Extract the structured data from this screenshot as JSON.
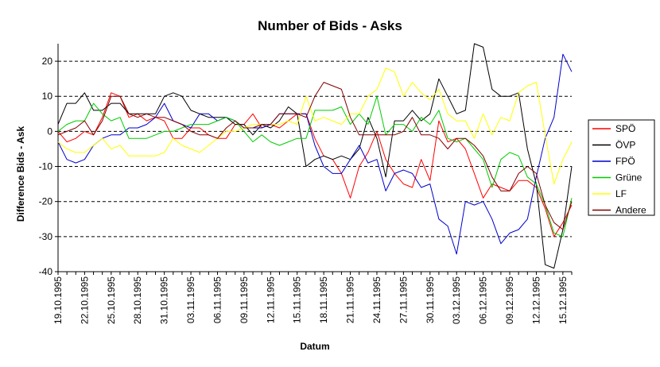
{
  "chart_data": {
    "type": "line",
    "title": "Number of Bids - Asks",
    "xlabel": "Datum",
    "ylabel": "Difference Bids - Ask",
    "ylim": [
      -40,
      25
    ],
    "yticks": [
      -40,
      -30,
      -20,
      -10,
      0,
      10,
      20
    ],
    "grid": "horizontal dashed",
    "legend_position": "right",
    "x": [
      "19.10.1995",
      "20.10.1995",
      "21.10.1995",
      "22.10.1995",
      "23.10.1995",
      "24.10.1995",
      "25.10.1995",
      "26.10.1995",
      "27.10.1995",
      "28.10.1995",
      "29.10.1995",
      "30.10.1995",
      "31.10.1995",
      "01.11.1995",
      "02.11.1995",
      "03.11.1995",
      "04.11.1995",
      "05.11.1995",
      "06.11.1995",
      "07.11.1995",
      "08.11.1995",
      "09.11.1995",
      "10.11.1995",
      "11.11.1995",
      "12.11.1995",
      "13.11.1995",
      "14.11.1995",
      "15.11.1995",
      "16.11.1995",
      "17.11.1995",
      "18.11.1995",
      "19.11.1995",
      "20.11.1995",
      "21.11.1995",
      "22.11.1995",
      "23.11.1995",
      "24.11.1995",
      "25.11.1995",
      "26.11.1995",
      "27.11.1995",
      "28.11.1995",
      "29.11.1995",
      "30.11.1995",
      "01.12.1995",
      "02.12.1995",
      "03.12.1995",
      "04.12.1995",
      "05.12.1995",
      "06.12.1995",
      "07.12.1995",
      "08.12.1995",
      "09.12.1995",
      "10.12.1995",
      "11.12.1995",
      "12.12.1995",
      "13.12.1995",
      "14.12.1995",
      "15.12.1995",
      "16.12.1995"
    ],
    "xtick_labels": [
      "19.10.1995",
      "22.10.1995",
      "25.10.1995",
      "28.10.1995",
      "31.10.1995",
      "03.11.1995",
      "06.11.1995",
      "09.11.1995",
      "12.11.1995",
      "15.11.1995",
      "18.11.1995",
      "21.11.1995",
      "24.11.1995",
      "27.11.1995",
      "30.11.1995",
      "03.12.1995",
      "06.12.1995",
      "09.12.1995",
      "12.12.1995",
      "15.12.1995"
    ],
    "series": [
      {
        "name": "SPÖ",
        "color": "#ff0000",
        "values": [
          0,
          -3,
          -2,
          0,
          -1,
          4,
          11,
          10,
          4,
          5,
          3,
          4,
          3,
          -2,
          -2,
          1,
          1,
          -1,
          -2,
          -2,
          2,
          2,
          5,
          1,
          2,
          1,
          3,
          5,
          5,
          -2,
          -7,
          -8,
          -12,
          -19,
          -10,
          -6,
          0,
          -8,
          -12,
          -15,
          -16,
          -8,
          -14,
          3,
          -3,
          -2,
          -5,
          -12,
          -19,
          -15,
          -16,
          -17,
          -14,
          -14,
          -16,
          -22,
          -30,
          -26,
          -21
        ]
      },
      {
        "name": "ÖVP",
        "color": "#000000",
        "values": [
          2,
          8,
          8,
          11,
          6,
          6,
          8,
          8,
          5,
          5,
          5,
          5,
          10,
          11,
          10,
          6,
          5,
          4,
          4,
          4,
          2,
          2,
          -1,
          2,
          1,
          3,
          7,
          5,
          -10,
          -8,
          -7,
          -8,
          -7,
          -8,
          -5,
          4,
          -2,
          -13,
          3,
          3,
          6,
          3,
          5,
          15,
          10,
          5,
          6,
          25,
          24,
          12,
          10,
          10,
          11,
          -5,
          -15,
          -38,
          -39,
          -28,
          -10
        ]
      },
      {
        "name": "FPÖ",
        "color": "#0000cc",
        "values": [
          -3,
          -8,
          -9,
          -8,
          -4,
          -2,
          -1,
          -1,
          1,
          1,
          2,
          4,
          8,
          3,
          2,
          1,
          5,
          5,
          3,
          4,
          3,
          1,
          1,
          1,
          2,
          5,
          5,
          5,
          5,
          -4,
          -10,
          -12,
          -12,
          -8,
          -4,
          -9,
          -8,
          -17,
          -12,
          -11,
          -12,
          -16,
          -15,
          -25,
          -27,
          -35,
          -20,
          -21,
          -20,
          -25,
          -32,
          -29,
          -28,
          -25,
          -13,
          -2,
          4,
          22,
          17
        ]
      },
      {
        "name": "Grüne",
        "color": "#00cc00",
        "values": [
          0,
          2,
          3,
          3,
          8,
          5,
          3,
          4,
          -2,
          -2,
          -2,
          -1,
          0,
          0,
          1,
          2,
          2,
          2,
          3,
          4,
          3,
          0,
          -3,
          -1,
          -3,
          -4,
          -3,
          -2,
          -2,
          6,
          6,
          6,
          7,
          2,
          5,
          2,
          10,
          -1,
          2,
          2,
          0,
          4,
          2,
          6,
          -2,
          -3,
          -2,
          -5,
          -8,
          -16,
          -8,
          -6,
          -7,
          -13,
          -15,
          -21,
          -29,
          -30,
          -19
        ]
      },
      {
        "name": "LF",
        "color": "#ffff00",
        "values": [
          -3,
          -5,
          -6,
          -6,
          -4,
          -2,
          -5,
          -4,
          -7,
          -7,
          -7,
          -7,
          -6,
          -2,
          -4,
          -5,
          -6,
          -4,
          -2,
          0,
          0,
          1,
          2,
          2,
          2,
          2,
          3,
          2,
          10,
          3,
          4,
          3,
          2,
          5,
          5,
          10,
          12,
          18,
          17,
          10,
          14,
          11,
          9,
          12,
          5,
          3,
          3,
          -2,
          5,
          -1,
          4,
          3,
          11,
          13,
          14,
          -1,
          -15,
          -8,
          -3
        ]
      },
      {
        "name": "Andere",
        "color": "#800000",
        "values": [
          -1,
          0,
          1,
          3,
          -1,
          3,
          10,
          10,
          5,
          4,
          5,
          4,
          4,
          3,
          2,
          0,
          -1,
          -1,
          -2,
          1,
          3,
          1,
          1,
          2,
          2,
          5,
          5,
          5,
          4,
          10,
          14,
          13,
          12,
          4,
          -1,
          -1,
          -1,
          -1,
          -1,
          0,
          4,
          -1,
          -1,
          -2,
          -5,
          -2,
          -2,
          -4,
          -7,
          -13,
          -17,
          -17,
          -12,
          -10,
          -12,
          -21,
          -26,
          -28,
          -20
        ]
      }
    ]
  }
}
